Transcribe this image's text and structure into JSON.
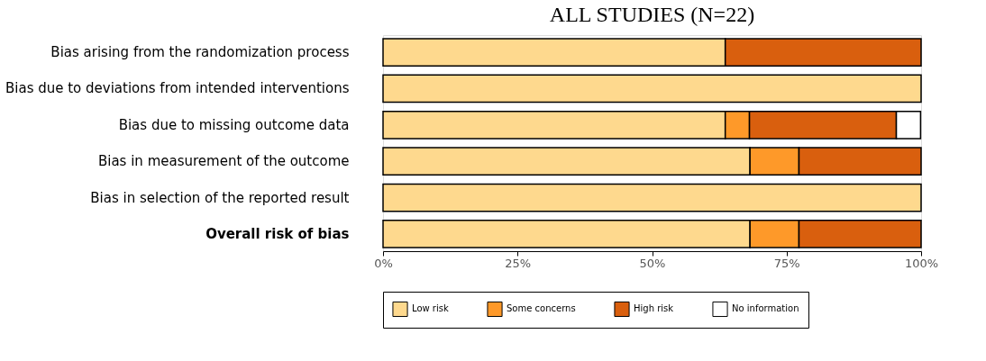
{
  "chart_data": {
    "type": "bar",
    "orientation": "horizontal",
    "stacked": true,
    "title": "ALL STUDIES (N=22)",
    "categories": [
      "Bias arising from the randomization process",
      "Bias due to deviations from intended interventions",
      "Bias due to missing outcome data",
      "Bias in measurement of the outcome",
      "Bias in selection of the reported result",
      "Overall risk of bias"
    ],
    "series": [
      {
        "name": "Low risk",
        "color": "#fed98e",
        "values": [
          63.6,
          100,
          63.6,
          68.2,
          100,
          68.2
        ]
      },
      {
        "name": "Some concerns",
        "color": "#fe9929",
        "values": [
          null,
          null,
          4.5,
          9.1,
          null,
          9.1
        ]
      },
      {
        "name": "High risk",
        "color": "#d95f0e",
        "values": [
          36.4,
          null,
          27.3,
          22.7,
          null,
          22.7
        ]
      },
      {
        "name": "No information",
        "color": "#ffffff",
        "values": [
          null,
          null,
          4.5,
          null,
          null,
          null
        ]
      }
    ],
    "xlim": [
      0,
      100
    ],
    "xticks": [
      {
        "value": 0,
        "label": "0%"
      },
      {
        "value": 25,
        "label": "25%"
      },
      {
        "value": 50,
        "label": "50%"
      },
      {
        "value": 75,
        "label": "75%"
      },
      {
        "value": 100,
        "label": "100%"
      }
    ],
    "grid": false,
    "legend": "bottom"
  }
}
